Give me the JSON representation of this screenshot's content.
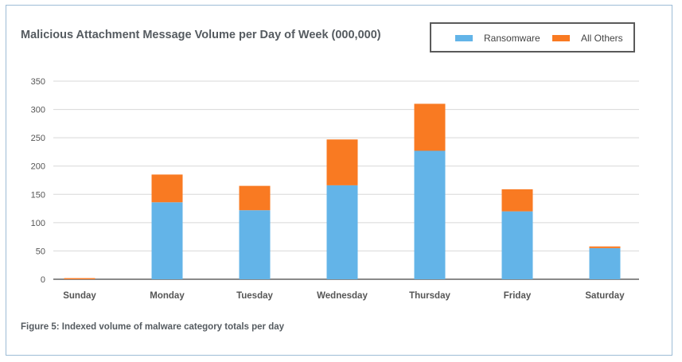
{
  "colors": {
    "ransomware": "#63b4e8",
    "all_others": "#f97a22",
    "grid": "#d8d8d8",
    "axis": "#444444"
  },
  "chart_data": {
    "type": "bar",
    "stacked": true,
    "title": "Malicious Attachment Message Volume per Day of Week (000,000)",
    "categories": [
      "Sunday",
      "Monday",
      "Tuesday",
      "Wednesday",
      "Thursday",
      "Friday",
      "Saturday"
    ],
    "series": [
      {
        "name": "Ransomware",
        "values": [
          0,
          136,
          122,
          166,
          227,
          120,
          55
        ]
      },
      {
        "name": "All Others",
        "values": [
          2,
          49,
          43,
          81,
          83,
          39,
          3
        ]
      }
    ],
    "ylim": [
      0,
      350
    ],
    "yticks": [
      0,
      50,
      100,
      150,
      200,
      250,
      300,
      350
    ],
    "grid": true,
    "legend_position": "top-right"
  },
  "caption": "Figure 5:  Indexed volume of malware category totals per day"
}
